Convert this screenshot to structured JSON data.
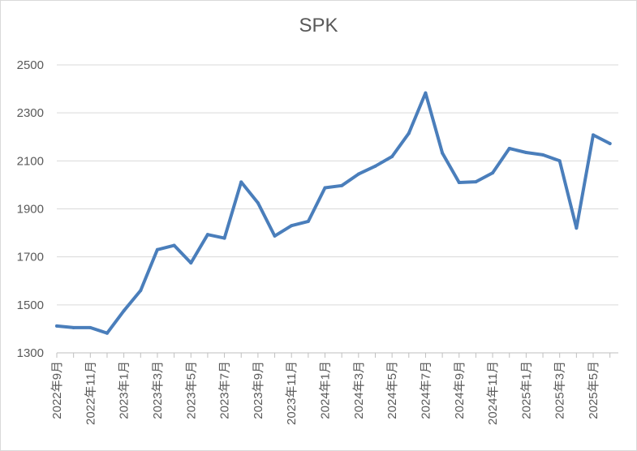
{
  "chart_data": {
    "type": "line",
    "title": "SPK",
    "xlabel": "",
    "ylabel": "",
    "ylim": [
      1300,
      2500
    ],
    "yticks": [
      1300,
      1500,
      1700,
      1900,
      2100,
      2300,
      2500
    ],
    "grid": "horizontal",
    "x": [
      "2022年9月",
      "2022年10月",
      "2022年11月",
      "2022年12月",
      "2023年1月",
      "2023年2月",
      "2023年3月",
      "2023年4月",
      "2023年5月",
      "2023年6月",
      "2023年7月",
      "2023年8月",
      "2023年9月",
      "2023年10月",
      "2023年11月",
      "2023年12月",
      "2024年1月",
      "2024年2月",
      "2024年3月",
      "2024年4月",
      "2024年5月",
      "2024年6月",
      "2024年7月",
      "2024年8月",
      "2024年9月",
      "2024年10月",
      "2024年11月",
      "2024年12月",
      "2025年1月",
      "2025年2月",
      "2025年3月",
      "2025年4月",
      "2025年5月",
      "2025年6月"
    ],
    "x_tick_labels": [
      "2022年9月",
      "2022年11月",
      "2023年1月",
      "2023年3月",
      "2023年5月",
      "2023年7月",
      "2023年9月",
      "2023年11月",
      "2024年1月",
      "2024年3月",
      "2024年5月",
      "2024年7月",
      "2024年9月",
      "2024年11月",
      "2025年1月",
      "2025年3月",
      "2025年5月"
    ],
    "series": [
      {
        "color": "#4a7ebb",
        "values": [
          1412,
          1405,
          1405,
          1382,
          1475,
          1560,
          1730,
          1748,
          1675,
          1793,
          1778,
          2012,
          1925,
          1787,
          1830,
          1848,
          1988,
          1997,
          2045,
          2078,
          2118,
          2215,
          2383,
          2133,
          2010,
          2013,
          2050,
          2152,
          2135,
          2125,
          2100,
          1820,
          2208,
          2172
        ]
      }
    ]
  }
}
